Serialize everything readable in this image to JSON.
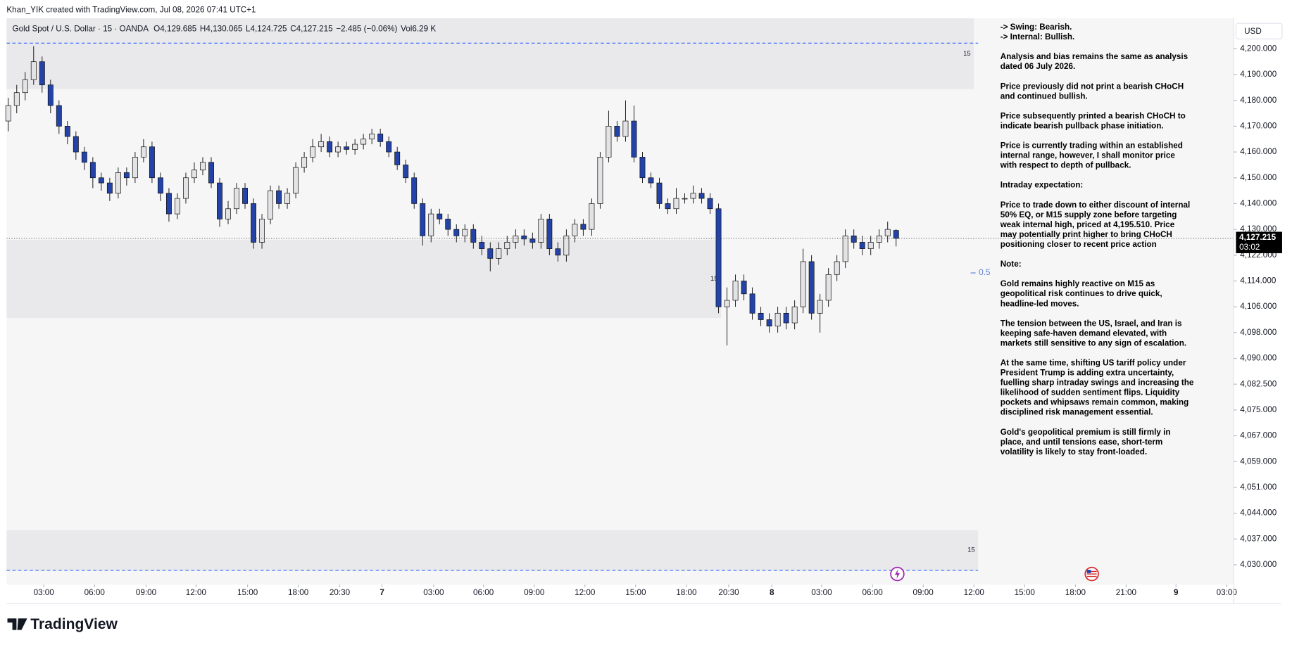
{
  "header": {
    "credit": "Khan_YIK created with TradingView.com, Jul 08, 2026 07:41 UTC+1",
    "brand": "TradingView"
  },
  "chart_data": {
    "type": "candlestick",
    "title": "Gold Spot / U.S. Dollar · 15 · OANDA",
    "legend_values": [
      "O4,129.685",
      "H4,130.065",
      "L4,124.725",
      "C4,127.215",
      "−2.485 (−0.06%)",
      "Vol6.29 K"
    ],
    "currency": "USD",
    "up_color": "#e3e3e6",
    "down_color": "#2443a8",
    "open": [
      4172,
      4178,
      4183,
      4188,
      4195,
      4186,
      4178,
      4170,
      4166,
      4160,
      4156,
      4150,
      4148,
      4144,
      4152,
      4150,
      4158,
      4162,
      4150,
      4144,
      4136,
      4142,
      4150,
      4153,
      4156,
      4148,
      4134,
      4138,
      4146,
      4140,
      4126,
      4134,
      4145,
      4140,
      4144,
      4154,
      4158,
      4162,
      4164,
      4160,
      4162,
      4161,
      4163,
      4165,
      4167,
      4164,
      4160,
      4155,
      4150,
      4140,
      4128,
      4136,
      4134,
      4130,
      4128,
      4130,
      4126,
      4124,
      4121,
      4124,
      4126,
      4128,
      4127,
      4126,
      4134,
      4124,
      4122,
      4128,
      4132,
      4130,
      4140,
      4158,
      4170,
      4166,
      4172,
      4158,
      4150,
      4148,
      4140,
      4138,
      4142,
      4142,
      4144,
      4142,
      4138,
      4106,
      4108,
      4114,
      4110,
      4104,
      4102,
      4100,
      4104,
      4101,
      4106,
      4120,
      4104,
      4108,
      4116,
      4120,
      4128,
      4126,
      4124,
      4126,
      4128,
      4129.685
    ],
    "high": [
      4181,
      4186,
      4191,
      4201,
      4197,
      4188,
      4180,
      4172,
      4168,
      4162,
      4158,
      4152,
      4150,
      4154,
      4154,
      4160,
      4165,
      4164,
      4152,
      4146,
      4144,
      4152,
      4156,
      4158,
      4158,
      4150,
      4141,
      4148,
      4148,
      4142,
      4136,
      4147,
      4147,
      4146,
      4156,
      4160,
      4165,
      4167,
      4166,
      4164,
      4164,
      4165,
      4167,
      4169,
      4169,
      4166,
      4162,
      4157,
      4152,
      4142,
      4138,
      4138,
      4136,
      4132,
      4132,
      4132,
      4128,
      4126,
      4126,
      4128,
      4130,
      4130,
      4129,
      4136,
      4136,
      4126,
      4130,
      4134,
      4134,
      4142,
      4160,
      4176,
      4172,
      4180,
      4178,
      4160,
      4152,
      4150,
      4142,
      4146,
      4144,
      4147,
      4146,
      4144,
      4140,
      4112,
      4116,
      4116,
      4112,
      4106,
      4104,
      4106,
      4106,
      4108,
      4124,
      4122,
      4110,
      4118,
      4122,
      4130,
      4130,
      4128,
      4128,
      4130,
      4133,
      4130.065
    ],
    "low": [
      4168,
      4175,
      4180,
      4186,
      4183,
      4175,
      4167,
      4163,
      4157,
      4153,
      4146,
      4145,
      4141,
      4142,
      4147,
      4148,
      4156,
      4148,
      4141,
      4133,
      4134,
      4140,
      4148,
      4151,
      4146,
      4131,
      4132,
      4136,
      4138,
      4124,
      4124,
      4132,
      4138,
      4138,
      4142,
      4152,
      4156,
      4160,
      4158,
      4158,
      4159,
      4159,
      4161,
      4163,
      4162,
      4158,
      4153,
      4148,
      4138,
      4125,
      4126,
      4132,
      4128,
      4126,
      4126,
      4124,
      4122,
      4117,
      4119,
      4122,
      4124,
      4125,
      4124,
      4124,
      4122,
      4120,
      4120,
      4126,
      4128,
      4128,
      4138,
      4156,
      4164,
      4164,
      4156,
      4148,
      4146,
      4138,
      4136,
      4136,
      4140,
      4140,
      4140,
      4136,
      4104,
      4094,
      4106,
      4108,
      4102,
      4100,
      4098,
      4098,
      4099,
      4099,
      4104,
      4102,
      4098,
      4106,
      4114,
      4118,
      4124,
      4122,
      4122,
      4124,
      4126,
      4124.725
    ],
    "close": [
      4178,
      4183,
      4188,
      4195,
      4186,
      4178,
      4170,
      4166,
      4160,
      4156,
      4150,
      4148,
      4144,
      4152,
      4150,
      4158,
      4162,
      4150,
      4144,
      4136,
      4142,
      4150,
      4153,
      4156,
      4148,
      4134,
      4138,
      4146,
      4140,
      4126,
      4134,
      4145,
      4140,
      4144,
      4154,
      4158,
      4162,
      4164,
      4160,
      4162,
      4161,
      4163,
      4165,
      4167,
      4164,
      4160,
      4155,
      4150,
      4140,
      4128,
      4136,
      4134,
      4130,
      4128,
      4130,
      4126,
      4124,
      4121,
      4124,
      4126,
      4128,
      4127,
      4126,
      4134,
      4124,
      4122,
      4128,
      4132,
      4130,
      4140,
      4158,
      4170,
      4166,
      4172,
      4158,
      4150,
      4148,
      4140,
      4138,
      4142,
      4142,
      4144,
      4142,
      4138,
      4106,
      4108,
      4114,
      4110,
      4104,
      4102,
      4100,
      4104,
      4101,
      4106,
      4120,
      4104,
      4108,
      4116,
      4120,
      4128,
      4126,
      4124,
      4126,
      4128,
      4130,
      4127.215
    ],
    "xlim": [
      -0.2,
      144.9
    ],
    "xticks": [
      {
        "value": 4.2,
        "label": "03:00"
      },
      {
        "value": 10.2,
        "label": "06:00"
      },
      {
        "value": 16.3,
        "label": "09:00"
      },
      {
        "value": 22.2,
        "label": "12:00"
      },
      {
        "value": 28.3,
        "label": "15:00"
      },
      {
        "value": 34.3,
        "label": "18:00"
      },
      {
        "value": 39.2,
        "label": "20:30"
      },
      {
        "value": 44.2,
        "label": "7"
      },
      {
        "value": 50.3,
        "label": "03:00"
      },
      {
        "value": 56.2,
        "label": "06:00"
      },
      {
        "value": 62.2,
        "label": "09:00"
      },
      {
        "value": 68.2,
        "label": "12:00"
      },
      {
        "value": 74.2,
        "label": "15:00"
      },
      {
        "value": 80.2,
        "label": "18:00"
      },
      {
        "value": 85.2,
        "label": "20:30"
      },
      {
        "value": 90.3,
        "label": "8"
      },
      {
        "value": 96.2,
        "label": "03:00"
      },
      {
        "value": 102.2,
        "label": "06:00"
      },
      {
        "value": 108.2,
        "label": "09:00"
      },
      {
        "value": 114.2,
        "label": "12:00"
      },
      {
        "value": 120.2,
        "label": "15:00"
      },
      {
        "value": 126.2,
        "label": "18:00"
      },
      {
        "value": 132.2,
        "label": "21:00"
      },
      {
        "value": 138.1,
        "label": "9"
      },
      {
        "value": 144.1,
        "label": "03:00"
      }
    ],
    "ylim": [
      4024.6,
      4211.8
    ],
    "yticks": [
      {
        "value": 4030,
        "label": "4,030.000"
      },
      {
        "value": 4037,
        "label": "4,037.000"
      },
      {
        "value": 4044,
        "label": "4,044.000"
      },
      {
        "value": 4051,
        "label": "4,051.000"
      },
      {
        "value": 4059,
        "label": "4,059.000"
      },
      {
        "value": 4067,
        "label": "4,067.000"
      },
      {
        "value": 4075,
        "label": "4,075.000"
      },
      {
        "value": 4082.5,
        "label": "4,082.500"
      },
      {
        "value": 4090,
        "label": "4,090.000"
      },
      {
        "value": 4098,
        "label": "4,098.000"
      },
      {
        "value": 4106,
        "label": "4,106.000"
      },
      {
        "value": 4114,
        "label": "4,114.000"
      },
      {
        "value": 4122,
        "label": "4,122.000"
      },
      {
        "value": 4130,
        "label": "4,130.000"
      },
      {
        "value": 4140,
        "label": "4,140.000"
      },
      {
        "value": 4150,
        "label": "4,150.000"
      },
      {
        "value": 4160,
        "label": "4,160.000"
      },
      {
        "value": 4170,
        "label": "4,170.000"
      },
      {
        "value": 4180,
        "label": "4,180.000"
      },
      {
        "value": 4190,
        "label": "4,190.000"
      },
      {
        "value": 4200,
        "label": "4,200.000"
      }
    ],
    "zones": [
      {
        "label": "15",
        "low": 4184.4,
        "high": 4211.8,
        "end": 114.2
      },
      {
        "label": "15",
        "low": 4102.5,
        "high": 4126.8,
        "end": 84.3
      },
      {
        "label": "15",
        "low": 4028.5,
        "high": 4039.4,
        "end": 114.7
      }
    ],
    "zone_color": "#e9e9ec",
    "dashed_levels": [
      {
        "price": 4202.2,
        "end": 114.7
      },
      {
        "price": 4028.5,
        "end": 114.7
      }
    ],
    "dashed_color": "#2962ff",
    "fib": {
      "ratio": 0.5,
      "price": 4116.5
    },
    "last_price_label": "4,127.215",
    "countdown": "03:02"
  },
  "annotation": [
    [
      "-> Swing: Bearish.",
      "-> Internal: Bullish."
    ],
    [
      "Analysis and bias remains the same as analysis",
      "dated 06 July 2026."
    ],
    [
      "Price previously did not print a bearish CHoCH",
      "and continued bullish."
    ],
    [
      "Price subsequently printed a bearish CHoCH to",
      "indicate bearish pullback phase initiation."
    ],
    [
      "Price is currently trading within an established",
      "internal range, however, I shall monitor price",
      "with respect to depth of pullback."
    ],
    [
      "Intraday expectation:"
    ],
    [
      "Price to trade down to either discount of internal",
      "50% EQ, or M15 supply zone before targeting",
      "weak internal high, priced at 4,195.510.  Price",
      "may potentially print higher to bring CHoCH",
      "positioning closer to recent price action"
    ],
    [
      "Note:"
    ],
    [
      "Gold remains highly reactive on M15 as",
      "geopolitical risk continues to drive quick,",
      "headline-led moves."
    ],
    [
      "The tension between the US, Israel, and Iran is",
      "keeping safe-haven demand elevated, with",
      "markets still sensitive to any sign of escalation."
    ],
    [
      "At the same time, shifting US tariff policy under",
      "President Trump is adding extra uncertainty,",
      "fuelling sharp intraday swings and increasing the",
      "likelihood of sudden sentiment flips. Liquidity",
      "pockets and whipsaws remain common, making",
      "disciplined risk management essential."
    ],
    [
      "Gold's geopolitical premium is still firmly in",
      "place, and until tensions ease, short-term",
      "volatility is likely to stay front-loaded."
    ]
  ]
}
